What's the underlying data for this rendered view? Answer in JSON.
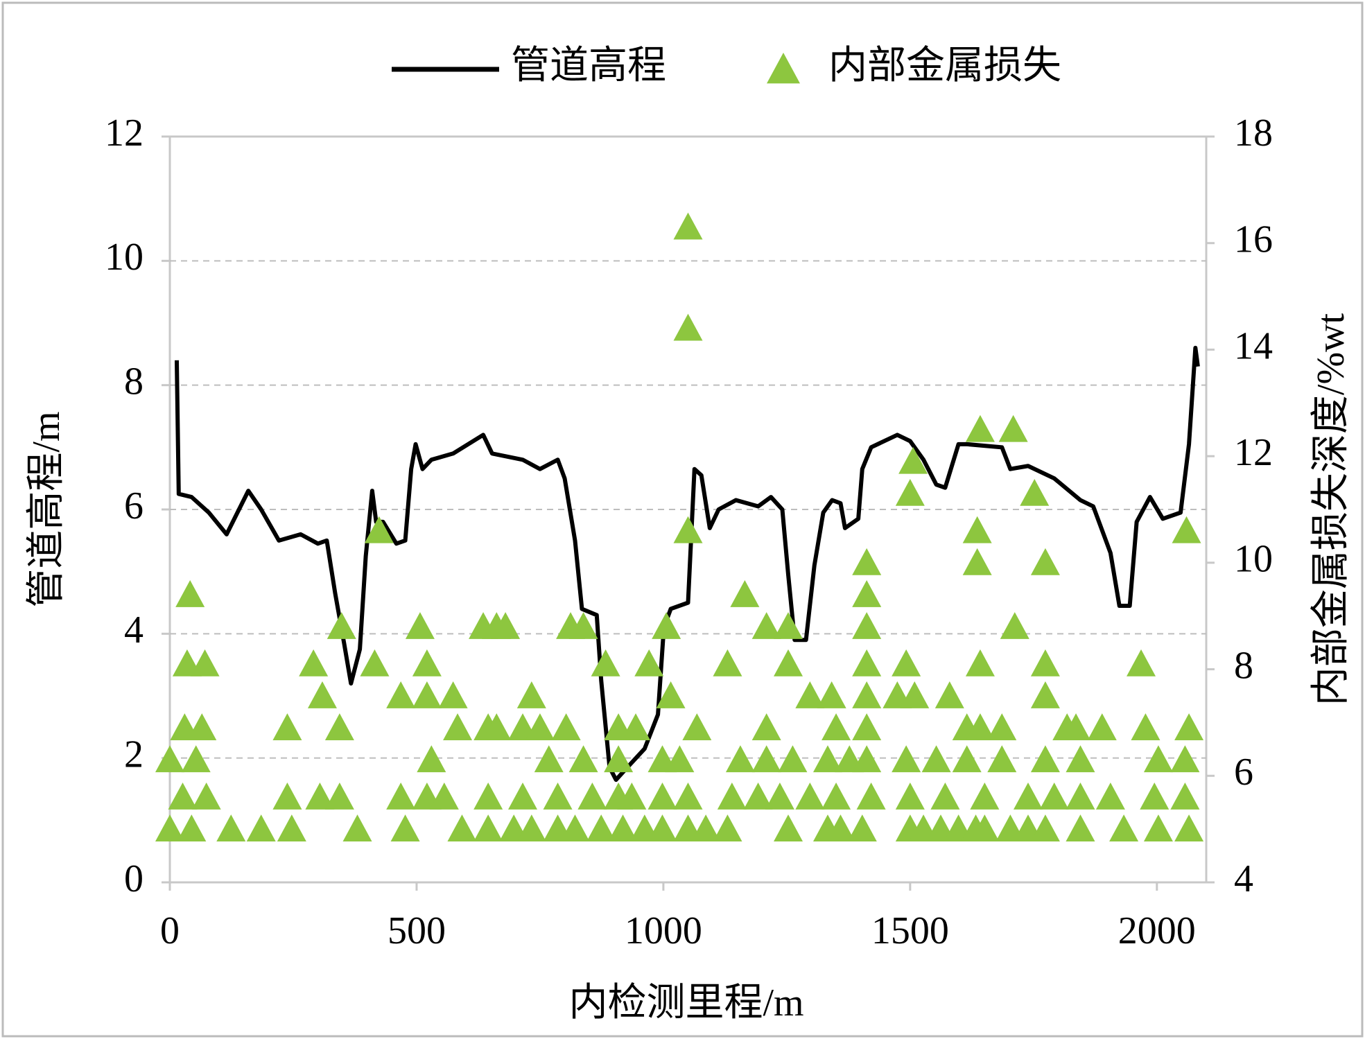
{
  "chart_data": {
    "type": "combo",
    "xlabel": "内检测里程/m",
    "ylabel": "管道高程/m",
    "y2label": "内部金属损失深度/%wt",
    "xlim": [
      0,
      2100
    ],
    "xticks": [
      0,
      500,
      1000,
      1500,
      2000
    ],
    "ylim": [
      0,
      12
    ],
    "yticks": [
      0,
      2,
      4,
      6,
      8,
      10,
      12
    ],
    "y2lim": [
      4,
      18
    ],
    "y2ticks": [
      4,
      6,
      8,
      10,
      12,
      14,
      16,
      18
    ],
    "grid": true,
    "legend": "top",
    "series": [
      {
        "name": "管道高程",
        "type": "line",
        "color": "#000000",
        "x": [
          14,
          18,
          44,
          79,
          115,
          159,
          185,
          221,
          265,
          300,
          318,
          335,
          353,
          367,
          385,
          397,
          410,
          418,
          432,
          459,
          477,
          489,
          498,
          512,
          530,
          574,
          635,
          653,
          715,
          750,
          786,
          800,
          821,
          835,
          865,
          874,
          891,
          904,
          927,
          962,
          989,
          1001,
          1015,
          1050,
          1063,
          1077,
          1094,
          1112,
          1147,
          1192,
          1218,
          1241,
          1253,
          1266,
          1289,
          1306,
          1324,
          1342,
          1359,
          1368,
          1395,
          1403,
          1421,
          1474,
          1500,
          1527,
          1553,
          1571,
          1598,
          1615,
          1686,
          1703,
          1739,
          1792,
          1845,
          1871,
          1906,
          1924,
          1945,
          1959,
          1986,
          2012,
          2048,
          2065,
          2078,
          2083
        ],
        "values": [
          8.4,
          6.25,
          6.2,
          5.95,
          5.6,
          6.3,
          6.0,
          5.5,
          5.6,
          5.45,
          5.5,
          4.65,
          3.85,
          3.2,
          3.75,
          5.25,
          6.3,
          5.8,
          5.8,
          5.45,
          5.5,
          6.65,
          7.05,
          6.65,
          6.8,
          6.9,
          7.2,
          6.9,
          6.8,
          6.65,
          6.8,
          6.5,
          5.5,
          4.4,
          4.3,
          3.25,
          1.85,
          1.65,
          1.85,
          2.15,
          2.7,
          4.1,
          4.4,
          4.5,
          6.65,
          6.55,
          5.7,
          6.0,
          6.15,
          6.05,
          6.2,
          6.0,
          4.95,
          3.9,
          3.9,
          5.1,
          5.95,
          6.15,
          6.1,
          5.7,
          5.85,
          6.65,
          7.0,
          7.2,
          7.1,
          6.8,
          6.4,
          6.35,
          7.05,
          7.05,
          7.0,
          6.65,
          6.7,
          6.5,
          6.15,
          6.05,
          5.3,
          4.45,
          4.45,
          5.8,
          6.2,
          5.85,
          5.95,
          7.05,
          8.6,
          8.3
        ]
      },
      {
        "name": "内部金属损失",
        "type": "scatter",
        "marker": "triangle",
        "color": "#8dc63f",
        "axis": "y2",
        "x": [
          0,
          44,
          124,
          185,
          247,
          380,
          477,
          592,
          645,
          697,
          733,
          786,
          821,
          874,
          918,
          962,
          998,
          1050,
          1086,
          1130,
          1253,
          1333,
          1359,
          1403,
          1500,
          1527,
          1562,
          1598,
          1633,
          1651,
          1703,
          1739,
          1774,
          1845,
          1933,
          2003,
          2065,
          26,
          74,
          238,
          304,
          344,
          468,
          521,
          556,
          645,
          715,
          786,
          856,
          909,
          936,
          998,
          1050,
          1139,
          1192,
          1236,
          1297,
          1350,
          1421,
          1500,
          1571,
          1651,
          1739,
          1792,
          1845,
          1906,
          1995,
          2057,
          0,
          53,
          530,
          768,
          838,
          909,
          998,
          1033,
          1156,
          1209,
          1262,
          1333,
          1377,
          1412,
          1492,
          1553,
          1615,
          1686,
          1774,
          1845,
          2003,
          2057,
          30,
          65,
          238,
          344,
          583,
          645,
          662,
          715,
          750,
          803,
          909,
          944,
          1068,
          1209,
          1350,
          1412,
          1615,
          1642,
          1686,
          1818,
          1836,
          1889,
          1977,
          2065,
          309,
          468,
          521,
          574,
          733,
          1015,
          1297,
          1341,
          1412,
          1474,
          1509,
          1580,
          1774,
          35,
          71,
          291,
          415,
          521,
          883,
          971,
          1130,
          1253,
          1412,
          1492,
          1642,
          1774,
          1968,
          348,
          507,
          635,
          662,
          680,
          812,
          838,
          1006,
          1209,
          1253,
          1412,
          1712,
          41,
          1165,
          1412,
          1412,
          1636,
          1774,
          424,
          1050,
          1636,
          2060,
          1500,
          1752,
          1506,
          1642,
          1709,
          1050,
          1050
        ],
        "values": [
          5,
          5,
          5,
          5,
          5,
          5,
          5,
          5,
          5,
          5,
          5,
          5,
          5,
          5,
          5,
          5,
          5,
          5,
          5,
          5,
          5,
          5,
          5,
          5,
          5,
          5,
          5,
          5,
          5,
          5,
          5,
          5,
          5,
          5,
          5,
          5,
          5,
          5.6,
          5.6,
          5.6,
          5.6,
          5.6,
          5.6,
          5.6,
          5.6,
          5.6,
          5.6,
          5.6,
          5.6,
          5.6,
          5.6,
          5.6,
          5.6,
          5.6,
          5.6,
          5.6,
          5.6,
          5.6,
          5.6,
          5.6,
          5.6,
          5.6,
          5.6,
          5.6,
          5.6,
          5.6,
          5.6,
          5.6,
          6.3,
          6.3,
          6.3,
          6.3,
          6.3,
          6.3,
          6.3,
          6.3,
          6.3,
          6.3,
          6.3,
          6.3,
          6.3,
          6.3,
          6.3,
          6.3,
          6.3,
          6.3,
          6.3,
          6.3,
          6.3,
          6.3,
          6.9,
          6.9,
          6.9,
          6.9,
          6.9,
          6.9,
          6.9,
          6.9,
          6.9,
          6.9,
          6.9,
          6.9,
          6.9,
          6.9,
          6.9,
          6.9,
          6.9,
          6.9,
          6.9,
          6.9,
          6.9,
          6.9,
          6.9,
          6.9,
          7.5,
          7.5,
          7.5,
          7.5,
          7.5,
          7.5,
          7.5,
          7.5,
          7.5,
          7.5,
          7.5,
          7.5,
          7.5,
          8.1,
          8.1,
          8.1,
          8.1,
          8.1,
          8.1,
          8.1,
          8.1,
          8.1,
          8.1,
          8.1,
          8.1,
          8.1,
          8.1,
          8.8,
          8.8,
          8.8,
          8.8,
          8.8,
          8.8,
          8.8,
          8.8,
          8.8,
          8.8,
          8.8,
          8.8,
          9.4,
          9.4,
          9.4,
          10,
          10,
          10,
          10.6,
          10.6,
          10.6,
          10.6,
          11.3,
          11.3,
          11.9,
          12.5,
          12.5,
          14.4,
          16.3
        ]
      }
    ]
  }
}
